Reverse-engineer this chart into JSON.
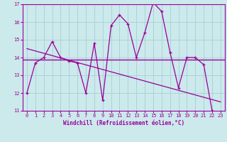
{
  "x": [
    0,
    1,
    2,
    3,
    4,
    5,
    6,
    7,
    8,
    9,
    10,
    11,
    12,
    13,
    14,
    15,
    16,
    17,
    18,
    19,
    20,
    21,
    22,
    23
  ],
  "y": [
    12.0,
    13.7,
    14.0,
    14.9,
    14.0,
    13.8,
    13.7,
    12.0,
    14.8,
    11.6,
    15.8,
    16.4,
    15.9,
    14.0,
    15.4,
    17.1,
    16.6,
    14.3,
    12.3,
    14.0,
    14.0,
    13.6,
    11.0,
    10.9
  ],
  "trend_x": [
    0,
    23
  ],
  "trend_y": [
    14.5,
    11.5
  ],
  "mean_y": 13.9,
  "bg_color": "#cce9ec",
  "grid_color": "#aad4d8",
  "line_color": "#990099",
  "text_color": "#990099",
  "xlabel": "Windchill (Refroidissement éolien,°C)",
  "ylim": [
    11.0,
    17.0
  ],
  "xlim": [
    -0.5,
    23.5
  ],
  "yticks": [
    11,
    12,
    13,
    14,
    15,
    16,
    17
  ],
  "xticks": [
    0,
    1,
    2,
    3,
    4,
    5,
    6,
    7,
    8,
    9,
    10,
    11,
    12,
    13,
    14,
    15,
    16,
    17,
    18,
    19,
    20,
    21,
    22,
    23
  ]
}
